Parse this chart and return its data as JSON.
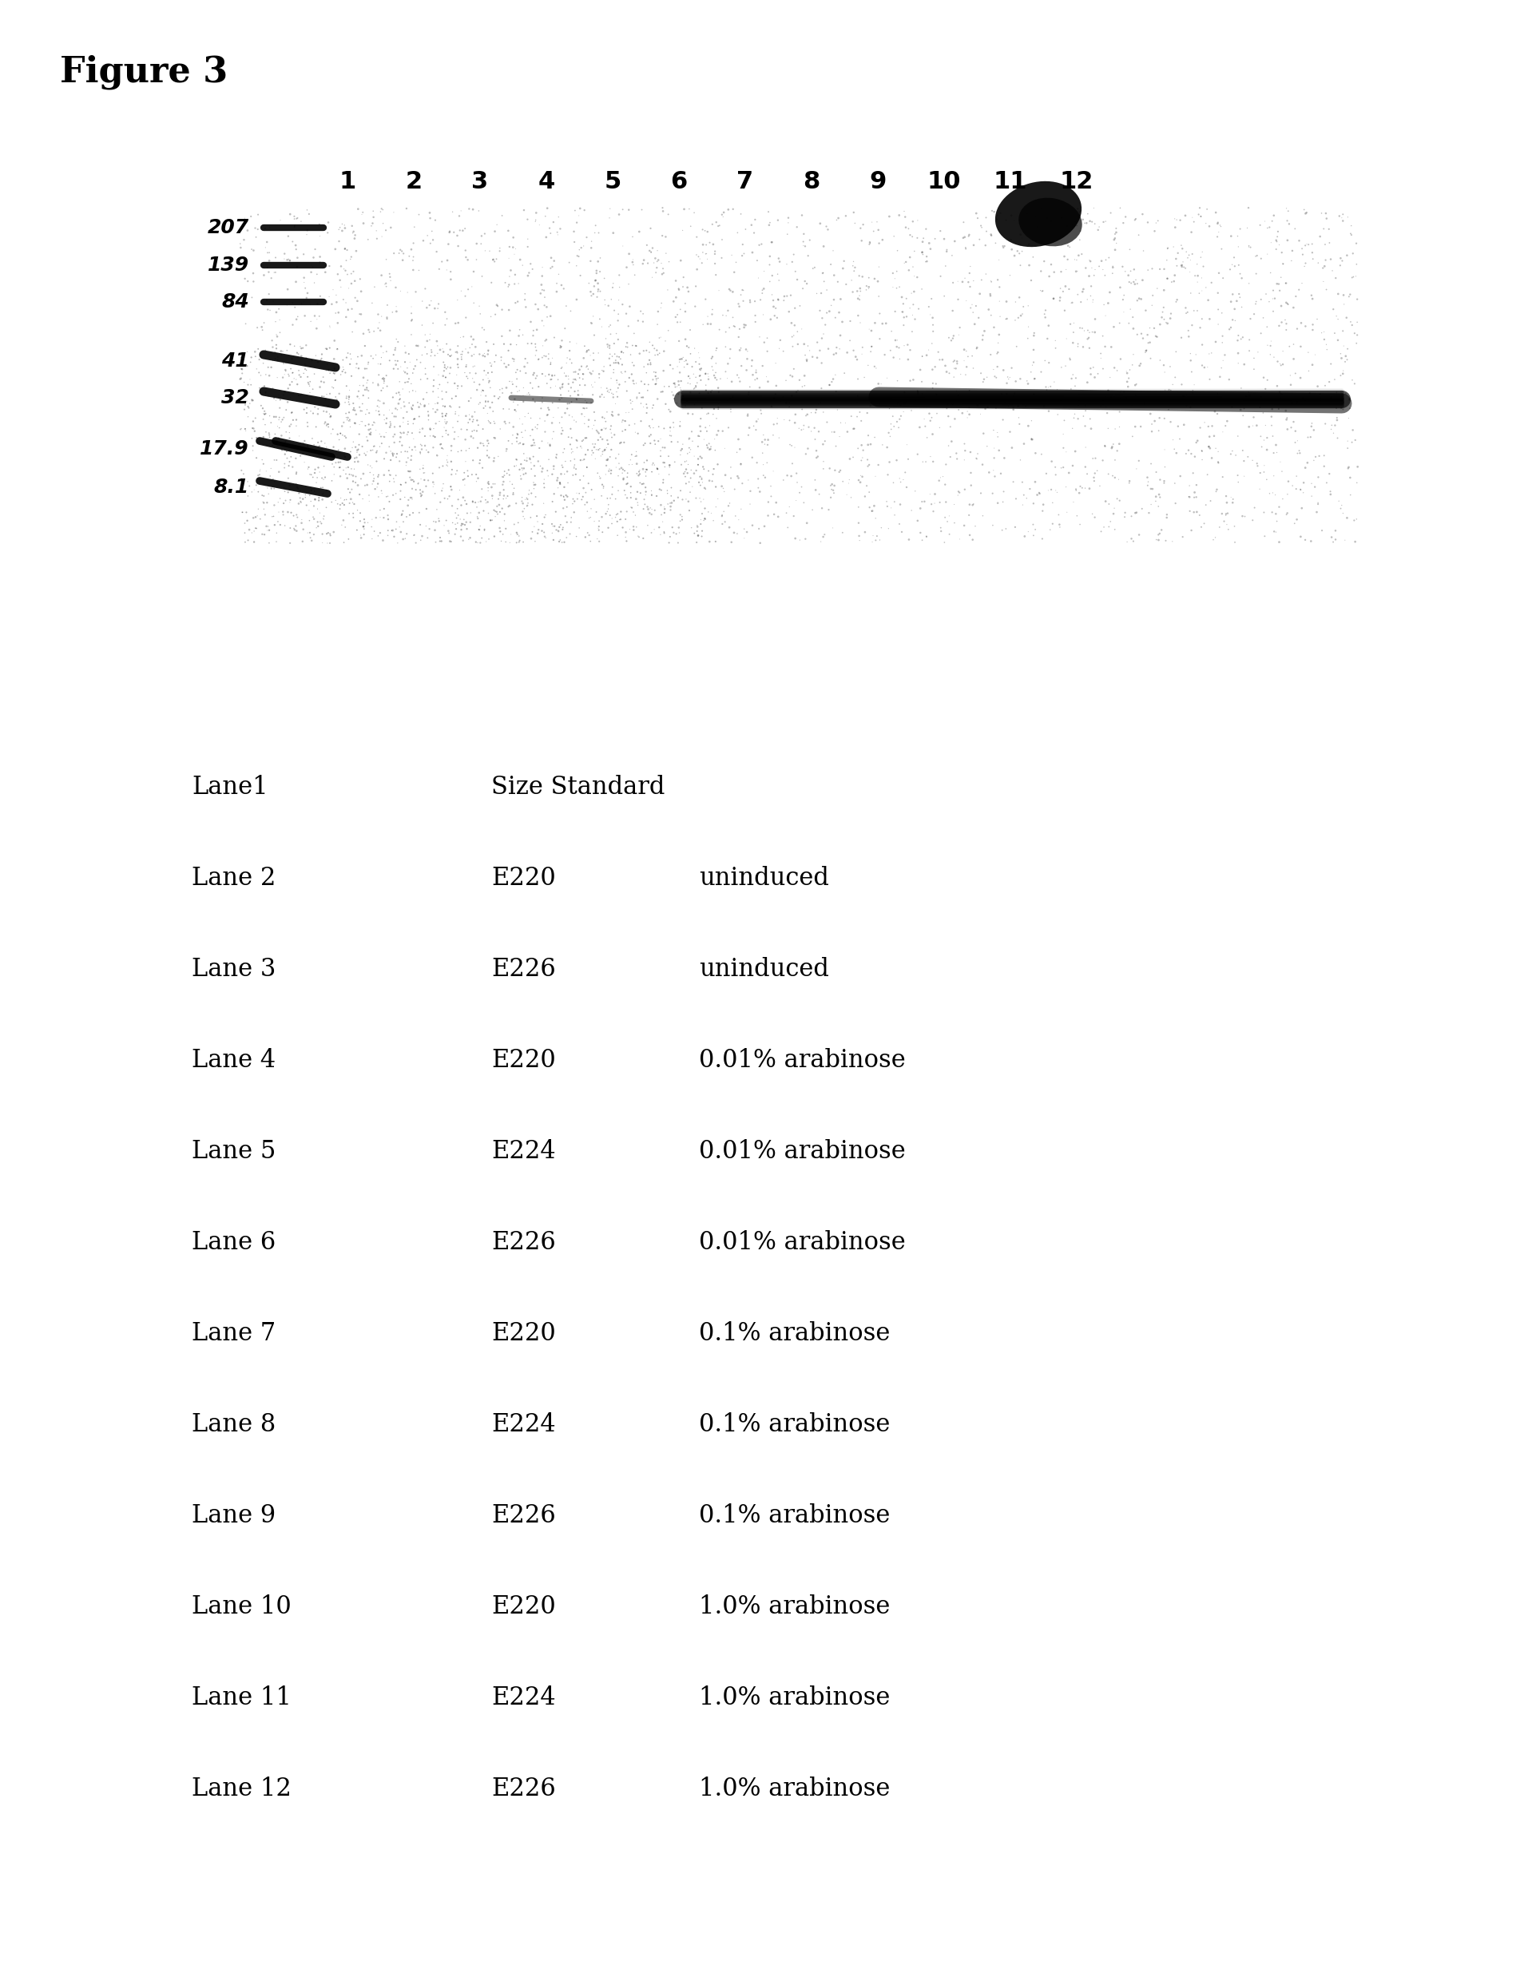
{
  "title": "Figure 3",
  "figure_width": 19.23,
  "figure_height": 24.85,
  "background_color": "#ffffff",
  "lane_numbers": [
    "1",
    "2",
    "3",
    "4",
    "5",
    "6",
    "7",
    "8",
    "9",
    "10",
    "11",
    "12"
  ],
  "marker_labels": [
    "207",
    "139",
    "84",
    "41",
    "32",
    "17.9",
    "8.1"
  ],
  "table_rows": [
    {
      "lane": "Lane1",
      "cell": "Size Standard",
      "condition": ""
    },
    {
      "lane": "Lane 2",
      "cell": "E220",
      "condition": "uninduced"
    },
    {
      "lane": "Lane 3",
      "cell": "E226",
      "condition": "uninduced"
    },
    {
      "lane": "Lane 4",
      "cell": "E220",
      "condition": "0.01% arabinose"
    },
    {
      "lane": "Lane 5",
      "cell": "E224",
      "condition": "0.01% arabinose"
    },
    {
      "lane": "Lane 6",
      "cell": "E226",
      "condition": "0.01% arabinose"
    },
    {
      "lane": "Lane 7",
      "cell": "E220",
      "condition": "0.1% arabinose"
    },
    {
      "lane": "Lane 8",
      "cell": "E224",
      "condition": "0.1% arabinose"
    },
    {
      "lane": "Lane 9",
      "cell": "E226",
      "condition": "0.1% arabinose"
    },
    {
      "lane": "Lane 10",
      "cell": "E220",
      "condition": "1.0% arabinose"
    },
    {
      "lane": "Lane 11",
      "cell": "E224",
      "condition": "1.0% arabinose"
    },
    {
      "lane": "Lane 12",
      "cell": "E226",
      "condition": "1.0% arabinose"
    }
  ]
}
